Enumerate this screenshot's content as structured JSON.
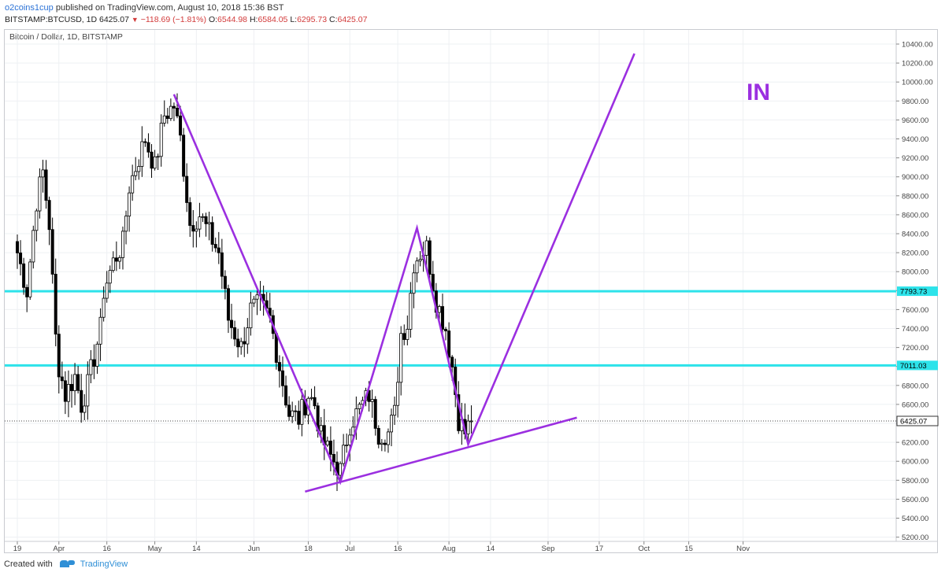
{
  "header": {
    "username": "o2coins1cup",
    "published_text": "published on TradingView.com, August 10, 2018 15:36 BST",
    "symbol": "BITSTAMP:BTCUSD, 1D",
    "last": "6425.07",
    "change": "−118.69 (−1.81%)",
    "o_label": "O:",
    "o_value": "6544.98",
    "h_label": "H:",
    "h_value": "6584.05",
    "l_label": "L:",
    "l_value": "6295.73",
    "c_label": "C:",
    "c_value": "6425.07"
  },
  "chart_title": "Bitcoin / Dollar, 1D, BITSTAMP",
  "footer": {
    "created_with": "Created with",
    "brand": "TradingView"
  },
  "annotation_text": "IN",
  "colors": {
    "trend": "#9b2fe0",
    "level": "#2de3ea",
    "up": "#ffffff",
    "down": "#000000",
    "grid": "#eef0f3"
  },
  "chart_data": {
    "type": "candlestick",
    "ylim": [
      5200,
      10500
    ],
    "y_ticks": [
      5200,
      5400,
      5600,
      5800,
      6000,
      6200,
      6400,
      6600,
      6800,
      7000,
      7200,
      7400,
      7600,
      7800,
      8000,
      8200,
      8400,
      8600,
      8800,
      9000,
      9200,
      9400,
      9600,
      9800,
      10000,
      10200,
      10400
    ],
    "x_ticks": [
      {
        "label": "19",
        "day": 0
      },
      {
        "label": "Apr",
        "day": 13
      },
      {
        "label": "16",
        "day": 28
      },
      {
        "label": "May",
        "day": 43
      },
      {
        "label": "14",
        "day": 56
      },
      {
        "label": "Jun",
        "day": 74
      },
      {
        "label": "18",
        "day": 91
      },
      {
        "label": "Jul",
        "day": 104
      },
      {
        "label": "16",
        "day": 119
      },
      {
        "label": "Aug",
        "day": 135
      },
      {
        "label": "14",
        "day": 148
      },
      {
        "label": "Sep",
        "day": 166
      },
      {
        "label": "17",
        "day": 182
      },
      {
        "label": "Oct",
        "day": 196
      },
      {
        "label": "15",
        "day": 210
      },
      {
        "label": "Nov",
        "day": 227
      }
    ],
    "levels": [
      {
        "price": 7793.73,
        "label": "7793.73"
      },
      {
        "price": 7011.03,
        "label": "7011.03"
      }
    ],
    "last_price": {
      "price": 6425.07,
      "label": "6425.07"
    },
    "trend_lines": [
      {
        "points": [
          [
            49,
            9870
          ],
          [
            101,
            5780
          ],
          [
            125,
            8460
          ],
          [
            141,
            6180
          ],
          [
            193,
            10300
          ]
        ]
      },
      {
        "points": [
          [
            90,
            5680
          ],
          [
            175,
            6460
          ]
        ]
      }
    ],
    "close_anchors": [
      [
        0,
        8200
      ],
      [
        3,
        7800
      ],
      [
        6,
        8750
      ],
      [
        8,
        9050
      ],
      [
        10,
        8500
      ],
      [
        12,
        7300
      ],
      [
        13,
        7000
      ],
      [
        15,
        6700
      ],
      [
        18,
        6900
      ],
      [
        20,
        6600
      ],
      [
        22,
        6800
      ],
      [
        24,
        7100
      ],
      [
        26,
        7400
      ],
      [
        27,
        7800
      ],
      [
        30,
        8100
      ],
      [
        33,
        8300
      ],
      [
        35,
        8900
      ],
      [
        38,
        9200
      ],
      [
        40,
        9400
      ],
      [
        43,
        9100
      ],
      [
        46,
        9650
      ],
      [
        49,
        9750
      ],
      [
        51,
        9400
      ],
      [
        54,
        8500
      ],
      [
        57,
        8600
      ],
      [
        60,
        8400
      ],
      [
        63,
        8200
      ],
      [
        66,
        7500
      ],
      [
        70,
        7200
      ],
      [
        73,
        7600
      ],
      [
        76,
        7650
      ],
      [
        79,
        7500
      ],
      [
        82,
        7000
      ],
      [
        85,
        6500
      ],
      [
        88,
        6450
      ],
      [
        91,
        6700
      ],
      [
        93,
        6600
      ],
      [
        95,
        6250
      ],
      [
        98,
        6050
      ],
      [
        101,
        5900
      ],
      [
        104,
        6400
      ],
      [
        107,
        6550
      ],
      [
        110,
        6700
      ],
      [
        113,
        6300
      ],
      [
        116,
        6300
      ],
      [
        118,
        6500
      ],
      [
        120,
        7350
      ],
      [
        122,
        7450
      ],
      [
        124,
        8100
      ],
      [
        126,
        8200
      ],
      [
        128,
        8250
      ],
      [
        131,
        7700
      ],
      [
        134,
        7400
      ],
      [
        136,
        7000
      ],
      [
        138,
        6450
      ],
      [
        140,
        6300
      ],
      [
        142,
        6425
      ]
    ]
  }
}
